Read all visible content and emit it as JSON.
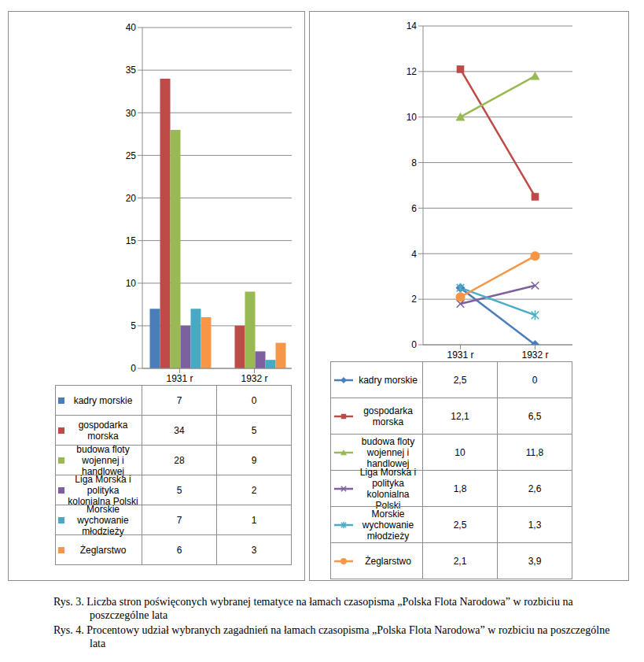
{
  "chart_data": [
    {
      "type": "bar",
      "title": "Rys. 3. Liczba stron poświęconych wybranej tematyce na łamach czasopisma „Polska Flota  Narodowa” w rozbiciu na poszczególne lata",
      "categories": [
        "1931 r",
        "1932 r"
      ],
      "series": [
        {
          "name": "kadry morskie",
          "color": "#4a7ebb",
          "values": [
            7,
            0
          ]
        },
        {
          "name": "gospodarka morska",
          "color": "#be4b48",
          "values": [
            34,
            5
          ]
        },
        {
          "name": "budowa floty wojennej i handlowej",
          "color": "#98b954",
          "values": [
            28,
            9
          ]
        },
        {
          "name": "Liga Morska i polityka kolonialna Polski",
          "color": "#7d60a0",
          "values": [
            5,
            2
          ]
        },
        {
          "name": "Morskie wychowanie młodzieży",
          "color": "#46aac5",
          "values": [
            7,
            1
          ]
        },
        {
          "name": "Żeglarstwo",
          "color": "#f79646",
          "values": [
            6,
            3
          ]
        }
      ],
      "ylim": [
        0,
        40
      ],
      "yticks": [
        0,
        5,
        10,
        15,
        20,
        25,
        30,
        35,
        40
      ],
      "grid": true,
      "legend": "bottom"
    },
    {
      "type": "line",
      "title": "Rys. 4. Procentowy udział wybranych zagadnień na łamach czasopisma „Polska Flota Narodowa” w rozbiciu na poszczególne lata",
      "categories": [
        "1931 r",
        "1932 r"
      ],
      "series": [
        {
          "name": "kadry morskie",
          "color": "#4a7ebb",
          "marker": "diamond",
          "values": [
            2.5,
            0
          ],
          "value_labels": [
            "2,5",
            "0"
          ]
        },
        {
          "name": "gospodarka morska",
          "color": "#be4b48",
          "marker": "square",
          "values": [
            12.1,
            6.5
          ],
          "value_labels": [
            "12,1",
            "6,5"
          ]
        },
        {
          "name": "budowa floty wojennej i handlowej",
          "color": "#98b954",
          "marker": "triangle",
          "values": [
            10,
            11.8
          ],
          "value_labels": [
            "10",
            "11,8"
          ]
        },
        {
          "name": "Liga Morska i polityka kolonialna Polski",
          "color": "#7d60a0",
          "marker": "x",
          "values": [
            1.8,
            2.6
          ],
          "value_labels": [
            "1,8",
            "2,6"
          ]
        },
        {
          "name": "Morskie wychowanie młodzieży",
          "color": "#4bacc6",
          "marker": "star",
          "values": [
            2.5,
            1.3
          ],
          "value_labels": [
            "2,5",
            "1,3"
          ]
        },
        {
          "name": "Żeglarstwo",
          "color": "#f79646",
          "marker": "circle",
          "values": [
            2.1,
            3.9
          ],
          "value_labels": [
            "2,1",
            "3,9"
          ]
        }
      ],
      "ylim": [
        0,
        14
      ],
      "yticks": [
        0,
        2,
        4,
        6,
        8,
        10,
        12,
        14
      ],
      "grid": true,
      "legend": "bottom"
    }
  ]
}
